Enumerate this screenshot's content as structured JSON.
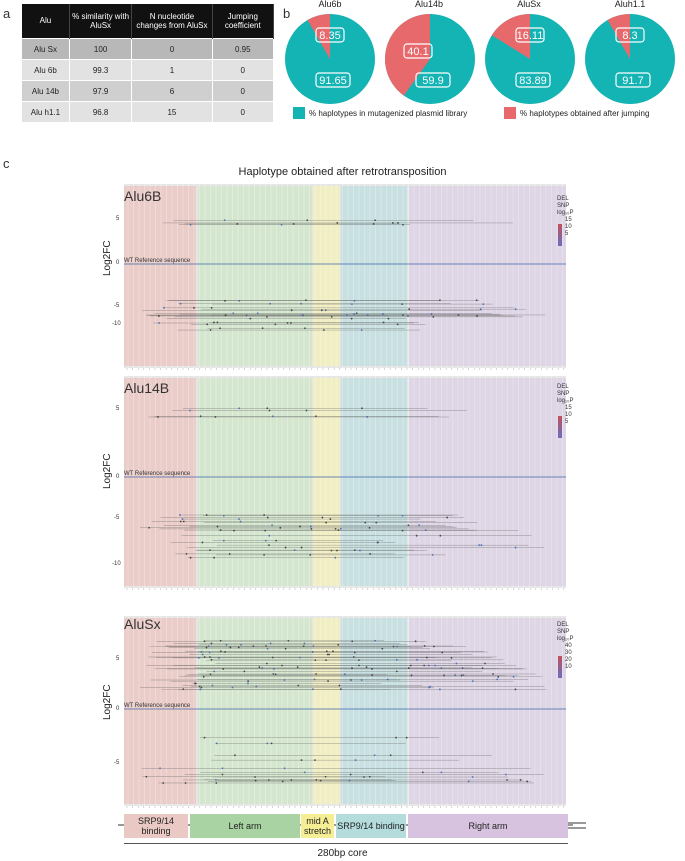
{
  "panels": {
    "a": "a",
    "b": "b",
    "c": "c"
  },
  "table": {
    "headers": [
      "Alu",
      "% similarity with AluSx",
      "N nucleotide changes from AluSx",
      "Jumping coefficient"
    ],
    "rows": [
      [
        "Alu Sx",
        "100",
        "0",
        "0.95"
      ],
      [
        "Alu 6b",
        "99.3",
        "1",
        "0"
      ],
      [
        "Alu 14b",
        "97.9",
        "6",
        "0"
      ],
      [
        "Alu h1.1",
        "96.8",
        "15",
        "0"
      ]
    ]
  },
  "pies": [
    {
      "name": "Alu6b",
      "library": "91.65",
      "jumping": "8.35",
      "library_value": 91.65,
      "jumping_value": 8.35
    },
    {
      "name": "Alu14b",
      "library": "59.9",
      "jumping": "40.1",
      "library_value": 59.9,
      "jumping_value": 40.1
    },
    {
      "name": "AluSx",
      "library": "83.89",
      "jumping": "16.11",
      "library_value": 83.89,
      "jumping_value": 16.11
    },
    {
      "name": "Aluh1.1",
      "library": "91.7",
      "jumping": "8.3",
      "library_value": 91.7,
      "jumping_value": 8.3
    }
  ],
  "legend": {
    "library": "% haplotypes in mutagenized plasmid library",
    "jumping": "% haplotypes obtained after jumping"
  },
  "colors": {
    "teal": "#14b3b4",
    "salmon": "#e8696b",
    "pink_region": "#eac9c4",
    "green_region": "#d3e5cc",
    "yellow_region": "#f2eec0",
    "teal_region": "#c4dfe0",
    "purple_region": "#ddd3e4"
  },
  "chart": {
    "title": "Haplotype obtained after retrotransposition",
    "ylabel": "Log2FC",
    "wt_label": "WT Reference sequence",
    "panels": [
      {
        "name": "Alu6B",
        "yticks": [
          "5",
          "0",
          "-5",
          "-10"
        ],
        "legend": [
          "DEL",
          "SNP",
          "log₁₀P",
          "15",
          "10",
          "5"
        ]
      },
      {
        "name": "Alu14B",
        "yticks": [
          "5",
          "0",
          "-5",
          "-10"
        ],
        "legend": [
          "DEL",
          "SNP",
          "log₁₀P",
          "15",
          "10",
          "5"
        ]
      },
      {
        "name": "AluSx",
        "yticks": [
          "5",
          "0",
          "-5"
        ],
        "legend": [
          "DEL",
          "SNP",
          "log₁₀P",
          "40",
          "30",
          "20",
          "10"
        ]
      }
    ]
  },
  "domains": {
    "srp_left": "SRP9/14 binding",
    "left_arm": "Left arm",
    "mid_a": "mid A stretch",
    "srp_right": "SRP9/14 binding",
    "right_arm": "Right arm",
    "core": "280bp core"
  }
}
